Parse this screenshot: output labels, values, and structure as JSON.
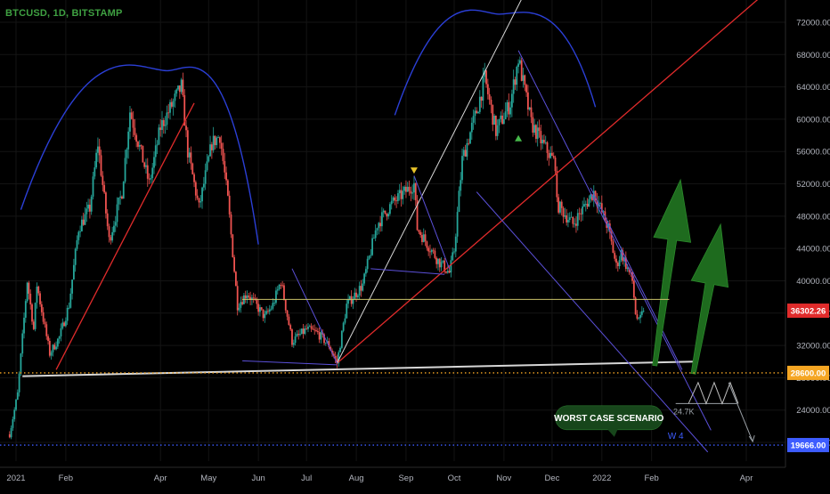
{
  "header": {
    "symbol_title": "BTCUSD, 1D, BITSTAMP"
  },
  "colors": {
    "background": "#000000",
    "up_candle": "#26a69a",
    "down_candle": "#ef5350",
    "arc": "#2b3fd6",
    "red_trendline": "#e02b2b",
    "white_trendline": "#d7d7d7",
    "purple_lines": "#5b50d9",
    "yellow_level": "#c9c36a",
    "orange_level": "#f5a623",
    "blue_level": "#3d5cff",
    "green_arrow": "#1e6b1e",
    "callout_bg": "#17461b",
    "callout_text": "#ffffff"
  },
  "chart_data": {
    "type": "candlestick",
    "symbol": "BTCUSD",
    "interval": "1D",
    "exchange": "BITSTAMP",
    "x_range": [
      "2020-12-28",
      "2022-04-15"
    ],
    "ylim": [
      16500,
      74500
    ],
    "y_ticks": [
      20000,
      24000,
      28000,
      32000,
      36000,
      40000,
      44000,
      48000,
      52000,
      56000,
      60000,
      64000,
      68000,
      72000
    ],
    "y_tick_labels": [
      "20000.00",
      "24000.00",
      "28000.00",
      "32000.00",
      "36000.00",
      "40000.00",
      "44000.00",
      "48000.00",
      "52000.00",
      "56000.00",
      "60000.00",
      "64000.00",
      "68000.00",
      "72000.00"
    ],
    "x_ticks": [
      {
        "date": "2021-01-01",
        "label": "2021"
      },
      {
        "date": "2021-02-01",
        "label": "Feb"
      },
      {
        "date": "2021-04-01",
        "label": "Apr"
      },
      {
        "date": "2021-05-01",
        "label": "May"
      },
      {
        "date": "2021-06-01",
        "label": "Jun"
      },
      {
        "date": "2021-07-01",
        "label": "Jul"
      },
      {
        "date": "2021-08-01",
        "label": "Aug"
      },
      {
        "date": "2021-09-01",
        "label": "Sep"
      },
      {
        "date": "2021-10-01",
        "label": "Oct"
      },
      {
        "date": "2021-11-01",
        "label": "Nov"
      },
      {
        "date": "2021-12-01",
        "label": "Dec"
      },
      {
        "date": "2022-01-01",
        "label": "2022"
      },
      {
        "date": "2022-02-01",
        "label": "Feb"
      },
      {
        "date": "2022-04-01",
        "label": "Apr"
      }
    ],
    "price_path": [
      [
        "2020-12-28",
        21000
      ],
      [
        "2021-01-02",
        26000
      ],
      [
        "2021-01-08",
        40000
      ],
      [
        "2021-01-12",
        34000
      ],
      [
        "2021-01-14",
        39500
      ],
      [
        "2021-01-22",
        31000
      ],
      [
        "2021-01-28",
        33000
      ],
      [
        "2021-02-03",
        37000
      ],
      [
        "2021-02-09",
        46500
      ],
      [
        "2021-02-16",
        49000
      ],
      [
        "2021-02-21",
        57000
      ],
      [
        "2021-02-28",
        45000
      ],
      [
        "2021-03-08",
        51000
      ],
      [
        "2021-03-13",
        61000
      ],
      [
        "2021-03-25",
        52000
      ],
      [
        "2021-04-01",
        59000
      ],
      [
        "2021-04-14",
        64000
      ],
      [
        "2021-04-18",
        56000
      ],
      [
        "2021-04-25",
        49000
      ],
      [
        "2021-05-03",
        57000
      ],
      [
        "2021-05-08",
        58000
      ],
      [
        "2021-05-13",
        50000
      ],
      [
        "2021-05-19",
        37000
      ],
      [
        "2021-05-25",
        38500
      ],
      [
        "2021-06-05",
        35500
      ],
      [
        "2021-06-10",
        37000
      ],
      [
        "2021-06-15",
        40000
      ],
      [
        "2021-06-22",
        32500
      ],
      [
        "2021-07-01",
        34000
      ],
      [
        "2021-07-08",
        33500
      ],
      [
        "2021-07-15",
        32000
      ],
      [
        "2021-07-20",
        29800
      ],
      [
        "2021-07-26",
        37000
      ],
      [
        "2021-08-05",
        39500
      ],
      [
        "2021-08-14",
        47000
      ],
      [
        "2021-08-23",
        49500
      ],
      [
        "2021-09-06",
        52000
      ],
      [
        "2021-09-08",
        46500
      ],
      [
        "2021-09-21",
        42500
      ],
      [
        "2021-09-28",
        41000
      ],
      [
        "2021-10-01",
        43800
      ],
      [
        "2021-10-06",
        55000
      ],
      [
        "2021-10-15",
        61000
      ],
      [
        "2021-10-20",
        65000
      ],
      [
        "2021-10-27",
        58500
      ],
      [
        "2021-11-05",
        62000
      ],
      [
        "2021-11-10",
        67500
      ],
      [
        "2021-11-18",
        59500
      ],
      [
        "2021-11-25",
        57000
      ],
      [
        "2021-12-03",
        54500
      ],
      [
        "2021-12-04",
        49500
      ],
      [
        "2021-12-14",
        47000
      ],
      [
        "2021-12-27",
        51000
      ],
      [
        "2022-01-05",
        46500
      ],
      [
        "2022-01-10",
        41800
      ],
      [
        "2022-01-13",
        43500
      ],
      [
        "2022-01-20",
        40000
      ],
      [
        "2022-01-22",
        36000
      ],
      [
        "2022-01-24",
        34800
      ],
      [
        "2022-01-27",
        36302
      ]
    ],
    "price_labels": [
      {
        "value": 36302.26,
        "label": "36302.26",
        "color": "#e02b2b"
      },
      {
        "value": 28600,
        "label": "28600.00",
        "color": "#f5a623"
      },
      {
        "value": 19666,
        "label": "19666.00",
        "color": "#3d5cff"
      }
    ],
    "annotations": [
      {
        "text": "WORST CASE SCENARIO",
        "kind": "callout"
      },
      {
        "text": "24.7K",
        "kind": "label"
      },
      {
        "text": "W 4",
        "kind": "label"
      }
    ],
    "horizontal_levels": [
      {
        "value": 37700,
        "color": "#c9c36a",
        "style": "solid"
      },
      {
        "value": 28600,
        "color": "#f5a623",
        "style": "dotted"
      },
      {
        "value": 19666,
        "color": "#3d5cff",
        "style": "dotted"
      }
    ],
    "drawings": {
      "arcs": [
        {
          "start": [
            "2021-01-04",
            48800
          ],
          "peak": [
            "2021-04-05",
            66000
          ],
          "end": [
            "2021-06-01",
            44500
          ]
        },
        {
          "start": [
            "2021-08-25",
            60500
          ],
          "peak": [
            "2021-10-29",
            73000
          ],
          "end": [
            "2021-12-28",
            61500
          ]
        }
      ],
      "red_lines": [
        {
          "from": [
            "2021-01-26",
            29000
          ],
          "to": [
            "2021-04-22",
            62000
          ]
        },
        {
          "from": [
            "2021-07-20",
            29800
          ],
          "to": [
            "2022-04-15",
            76000
          ]
        }
      ],
      "white_lines": [
        {
          "from": [
            "2021-01-05",
            28200
          ],
          "to": [
            "2022-02-28",
            30000
          ],
          "width": 2
        },
        {
          "from": [
            "2021-07-20",
            29800
          ],
          "to": [
            "2021-11-20",
            78000
          ],
          "width": 1
        }
      ],
      "purple_lines": [
        {
          "from": [
            "2021-05-22",
            30100
          ],
          "to": [
            "2021-07-20",
            29600
          ]
        },
        {
          "from": [
            "2021-06-22",
            41500
          ],
          "to": [
            "2021-07-20",
            29800
          ]
        },
        {
          "from": [
            "2021-08-10",
            41500
          ],
          "to": [
            "2021-09-25",
            40800
          ]
        },
        {
          "from": [
            "2021-09-06",
            53000
          ],
          "to": [
            "2021-09-28",
            41500
          ]
        },
        {
          "from": [
            "2021-11-10",
            68500
          ],
          "to": [
            "2022-03-10",
            21500
          ]
        },
        {
          "from": [
            "2021-10-15",
            51000
          ],
          "to": [
            "2022-03-08",
            18800
          ]
        },
        {
          "from": [
            "2021-12-25",
            51500
          ],
          "to": [
            "2022-02-20",
            29000
          ]
        }
      ],
      "markers": [
        {
          "date": "2021-09-06",
          "value": 53700,
          "shape": "triangle-down",
          "color": "#e6c229"
        },
        {
          "date": "2021-11-10",
          "value": 57600,
          "shape": "triangle-up",
          "color": "#46b84a"
        }
      ],
      "big_arrows": [
        {
          "from": [
            "2022-02-03",
            29500
          ],
          "to": [
            "2022-02-19",
            52500
          ]
        },
        {
          "from": [
            "2022-02-27",
            28500
          ],
          "to": [
            "2022-03-16",
            47000
          ]
        }
      ],
      "zigzag": [
        [
          "2022-02-24",
          24800
        ],
        [
          "2022-03-02",
          27400
        ],
        [
          "2022-03-07",
          24800
        ],
        [
          "2022-03-12",
          27400
        ],
        [
          "2022-03-17",
          24800
        ],
        [
          "2022-03-22",
          27400
        ],
        [
          "2022-03-27",
          24800
        ]
      ],
      "zigzag_base": {
        "from": [
          "2022-02-16",
          24800
        ],
        "to": [
          "2022-03-26",
          24800
        ]
      },
      "drop_arrow": {
        "from": [
          "2022-03-21",
          27400
        ],
        "to": [
          "2022-04-05",
          20100
        ]
      }
    }
  }
}
